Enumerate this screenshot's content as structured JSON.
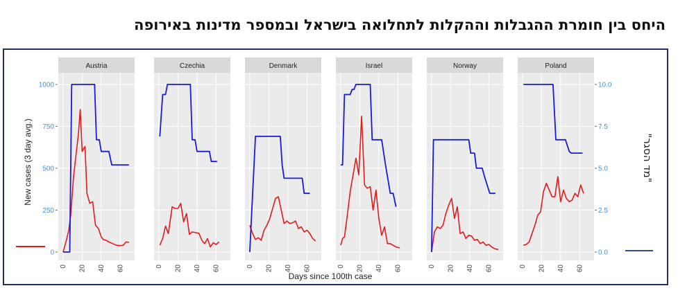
{
  "title": "היחס בין חומרת ההגבלות וההקלות לתחלואה בישראל ובמספר מדינות באירופה",
  "chart_data": {
    "type": "line",
    "xlabel": "Days since 100th case",
    "ylabel_left": "New cases (3 day avg.)",
    "ylabel_right": "\"מד הסגר\"",
    "xlim": [
      -5,
      75
    ],
    "ylim_left": [
      -50,
      1070
    ],
    "ylim_right": [
      -0.5,
      10.7
    ],
    "x_ticks": [
      0,
      20,
      40,
      60
    ],
    "x_tick_labels": [
      "0",
      "20",
      "40",
      "60"
    ],
    "y_left_ticks": [
      0,
      250,
      500,
      750,
      1000
    ],
    "y_left_tick_labels": [
      "0",
      "250",
      "500",
      "750",
      "1000"
    ],
    "y_right_ticks": [
      0,
      2.5,
      5,
      7.5,
      10
    ],
    "y_right_tick_labels": [
      "0.0",
      "2.5",
      "5.0",
      "7.5",
      "10.0"
    ],
    "grid": true,
    "colors": {
      "cases": "#e41a1c",
      "stringency": "#1a1adb",
      "panel_bg": "#ebebeb",
      "strip_bg": "#d9d9d9",
      "left_axis_text": "#4a90d9",
      "right_axis_text": "#4a90d9",
      "frame": "#1f2f57",
      "legend_right_line": "#2f4f8f"
    },
    "legend": {
      "left_sample": "cases",
      "right_sample": "stringency"
    },
    "panels": [
      {
        "name": "Austria",
        "cases": [
          [
            0,
            0
          ],
          [
            3,
            60
          ],
          [
            6,
            130
          ],
          [
            8,
            220
          ],
          [
            11,
            450
          ],
          [
            14,
            600
          ],
          [
            16,
            700
          ],
          [
            18,
            850
          ],
          [
            20,
            600
          ],
          [
            23,
            630
          ],
          [
            25,
            350
          ],
          [
            28,
            290
          ],
          [
            31,
            300
          ],
          [
            34,
            160
          ],
          [
            37,
            140
          ],
          [
            40,
            90
          ],
          [
            42,
            75
          ],
          [
            45,
            70
          ],
          [
            48,
            60
          ],
          [
            52,
            50
          ],
          [
            56,
            40
          ],
          [
            60,
            38
          ],
          [
            63,
            40
          ],
          [
            66,
            60
          ],
          [
            69,
            58
          ]
        ],
        "stringency": [
          [
            0,
            0
          ],
          [
            7,
            0
          ],
          [
            9,
            10
          ],
          [
            33,
            10
          ],
          [
            35,
            6.7
          ],
          [
            38,
            6.7
          ],
          [
            40,
            6.0
          ],
          [
            48,
            6.0
          ],
          [
            51,
            5.2
          ],
          [
            69,
            5.2
          ]
        ]
      },
      {
        "name": "Czechia",
        "cases": [
          [
            1,
            40
          ],
          [
            4,
            80
          ],
          [
            7,
            155
          ],
          [
            10,
            110
          ],
          [
            14,
            270
          ],
          [
            17,
            260
          ],
          [
            20,
            260
          ],
          [
            23,
            290
          ],
          [
            26,
            180
          ],
          [
            29,
            230
          ],
          [
            32,
            105
          ],
          [
            35,
            120
          ],
          [
            39,
            115
          ],
          [
            42,
            112
          ],
          [
            45,
            70
          ],
          [
            48,
            50
          ],
          [
            51,
            80
          ],
          [
            54,
            30
          ],
          [
            57,
            55
          ],
          [
            60,
            45
          ],
          [
            63,
            60
          ]
        ],
        "stringency": [
          [
            1,
            6.9
          ],
          [
            4,
            9.4
          ],
          [
            7,
            9.4
          ],
          [
            9,
            10
          ],
          [
            33,
            10
          ],
          [
            35,
            6.7
          ],
          [
            38,
            6.7
          ],
          [
            40,
            6.0
          ],
          [
            53,
            6.0
          ],
          [
            55,
            5.4
          ],
          [
            61,
            5.4
          ]
        ]
      },
      {
        "name": "Denmark",
        "cases": [
          [
            0,
            160
          ],
          [
            3,
            110
          ],
          [
            6,
            75
          ],
          [
            9,
            85
          ],
          [
            12,
            70
          ],
          [
            15,
            130
          ],
          [
            18,
            160
          ],
          [
            21,
            200
          ],
          [
            24,
            260
          ],
          [
            27,
            320
          ],
          [
            30,
            330
          ],
          [
            33,
            250
          ],
          [
            36,
            170
          ],
          [
            39,
            185
          ],
          [
            42,
            170
          ],
          [
            45,
            175
          ],
          [
            48,
            185
          ],
          [
            51,
            140
          ],
          [
            54,
            150
          ],
          [
            57,
            120
          ],
          [
            60,
            130
          ],
          [
            63,
            110
          ],
          [
            66,
            80
          ],
          [
            69,
            65
          ]
        ],
        "stringency": [
          [
            0,
            0
          ],
          [
            6,
            6.9
          ],
          [
            32,
            6.9
          ],
          [
            34,
            5.2
          ],
          [
            36,
            4.4
          ],
          [
            55,
            4.4
          ],
          [
            57,
            3.5
          ],
          [
            63,
            3.5
          ]
        ]
      },
      {
        "name": "Israel",
        "cases": [
          [
            0,
            40
          ],
          [
            2,
            80
          ],
          [
            4,
            90
          ],
          [
            7,
            220
          ],
          [
            10,
            360
          ],
          [
            13,
            460
          ],
          [
            16,
            560
          ],
          [
            19,
            460
          ],
          [
            22,
            810
          ],
          [
            25,
            400
          ],
          [
            28,
            380
          ],
          [
            31,
            390
          ],
          [
            34,
            250
          ],
          [
            37,
            370
          ],
          [
            40,
            200
          ],
          [
            43,
            100
          ],
          [
            46,
            150
          ],
          [
            49,
            50
          ],
          [
            52,
            50
          ],
          [
            55,
            40
          ],
          [
            58,
            30
          ],
          [
            62,
            25
          ]
        ],
        "stringency": [
          [
            0,
            5.2
          ],
          [
            2,
            5.2
          ],
          [
            4,
            9.4
          ],
          [
            10,
            9.4
          ],
          [
            12,
            9.7
          ],
          [
            14,
            9.7
          ],
          [
            16,
            10
          ],
          [
            31,
            10
          ],
          [
            33,
            6.7
          ],
          [
            43,
            6.7
          ],
          [
            47,
            5.2
          ],
          [
            52,
            3.5
          ],
          [
            55,
            3.5
          ],
          [
            58,
            2.7
          ]
        ]
      },
      {
        "name": "Norway",
        "cases": [
          [
            0,
            0
          ],
          [
            3,
            120
          ],
          [
            6,
            150
          ],
          [
            9,
            140
          ],
          [
            12,
            160
          ],
          [
            15,
            230
          ],
          [
            18,
            280
          ],
          [
            21,
            320
          ],
          [
            24,
            200
          ],
          [
            27,
            270
          ],
          [
            30,
            110
          ],
          [
            33,
            120
          ],
          [
            36,
            80
          ],
          [
            39,
            100
          ],
          [
            42,
            95
          ],
          [
            45,
            70
          ],
          [
            48,
            75
          ],
          [
            51,
            50
          ],
          [
            54,
            60
          ],
          [
            57,
            40
          ],
          [
            60,
            45
          ],
          [
            63,
            30
          ],
          [
            66,
            20
          ],
          [
            70,
            15
          ]
        ],
        "stringency": [
          [
            0,
            0
          ],
          [
            2,
            6.7
          ],
          [
            39,
            6.7
          ],
          [
            41,
            5.9
          ],
          [
            45,
            5.9
          ],
          [
            47,
            5.0
          ],
          [
            53,
            5.0
          ],
          [
            56,
            4.4
          ],
          [
            61,
            3.5
          ],
          [
            67,
            3.5
          ]
        ]
      },
      {
        "name": "Poland",
        "cases": [
          [
            1,
            40
          ],
          [
            4,
            45
          ],
          [
            7,
            60
          ],
          [
            10,
            110
          ],
          [
            13,
            160
          ],
          [
            16,
            220
          ],
          [
            19,
            240
          ],
          [
            22,
            360
          ],
          [
            25,
            410
          ],
          [
            28,
            370
          ],
          [
            31,
            330
          ],
          [
            34,
            330
          ],
          [
            37,
            450
          ],
          [
            40,
            300
          ],
          [
            43,
            370
          ],
          [
            46,
            320
          ],
          [
            49,
            300
          ],
          [
            52,
            310
          ],
          [
            55,
            350
          ],
          [
            58,
            330
          ],
          [
            61,
            400
          ],
          [
            64,
            350
          ]
        ],
        "stringency": [
          [
            1,
            10
          ],
          [
            32,
            10
          ],
          [
            35,
            6.7
          ],
          [
            45,
            6.7
          ],
          [
            49,
            6.0
          ],
          [
            51,
            5.9
          ],
          [
            63,
            5.9
          ]
        ]
      }
    ]
  }
}
